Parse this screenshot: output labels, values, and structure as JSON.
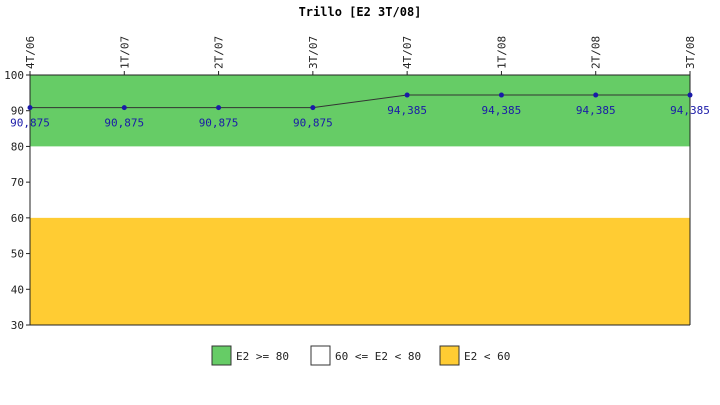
{
  "chart_data": {
    "type": "line",
    "title": "Trillo [E2 3T/08]",
    "categories": [
      "4T/06",
      "1T/07",
      "2T/07",
      "3T/07",
      "4T/07",
      "1T/08",
      "2T/08",
      "3T/08"
    ],
    "values": [
      90.875,
      90.875,
      90.875,
      90.875,
      94.385,
      94.385,
      94.385,
      94.385
    ],
    "value_labels": [
      "90,875",
      "90,875",
      "90,875",
      "90,875",
      "94,385",
      "94,385",
      "94,385",
      "94,385"
    ],
    "ylim": [
      30,
      100
    ],
    "yticks": [
      30,
      40,
      50,
      60,
      70,
      80,
      90,
      100
    ],
    "bands": [
      {
        "from": 80,
        "to": 100,
        "color": "#66cc66",
        "label": "E2 >= 80"
      },
      {
        "from": 60,
        "to": 80,
        "color": "#ffffff",
        "label": "60 <= E2 < 80"
      },
      {
        "from": 30,
        "to": 60,
        "color": "#ffcc33",
        "label": "E2 < 60"
      }
    ],
    "line_color": "#333333",
    "marker_color": "#1a1aa8",
    "label_color": "#1a1aa8",
    "legend_position": "bottom"
  }
}
